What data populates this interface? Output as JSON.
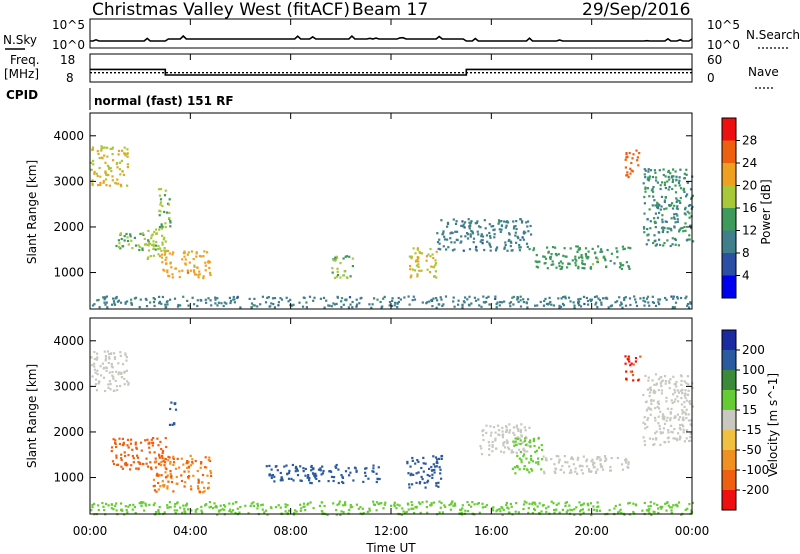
{
  "header": {
    "title": "Christmas Valley West (fitACF)",
    "beam": "Beam 17",
    "date": "29/Sep/2016"
  },
  "nsky_panel": {
    "label": "N.Sky",
    "right_label": "N.Search",
    "left_ticks": [
      "10^5",
      "10^0"
    ],
    "right_ticks": [
      "10^5",
      "10^0"
    ]
  },
  "freq_panel": {
    "label_line1": "Freq.",
    "label_line2": "[MHz]",
    "right_label": "Nave",
    "left_ticks": [
      "18",
      "8"
    ],
    "right_ticks": [
      "60",
      "0"
    ]
  },
  "cpid": {
    "label": "CPID",
    "value": "normal (fast) 151 RF"
  },
  "x_axis": {
    "label": "Time UT",
    "ticks": [
      "00:00",
      "04:00",
      "08:00",
      "12:00",
      "16:00",
      "20:00",
      "00:00"
    ]
  },
  "power_panel": {
    "ylabel": "Slant Range [km]",
    "yticks": [
      "1000",
      "2000",
      "3000",
      "4000"
    ],
    "colorbar_label": "Power [dB]",
    "colorbar_ticks": [
      "4",
      "8",
      "12",
      "16",
      "20",
      "24",
      "28"
    ],
    "colors": [
      "#0000ee",
      "#2a4fa5",
      "#3f7f8c",
      "#3d9a5a",
      "#a8c83a",
      "#f0a020",
      "#ee6010",
      "#ee1010"
    ]
  },
  "velocity_panel": {
    "ylabel": "Slant Range [km]",
    "yticks": [
      "1000",
      "2000",
      "3000",
      "4000"
    ],
    "colorbar_label": "Velocity [m s^-1]",
    "colorbar_ticks": [
      "200",
      "100",
      "50",
      "15",
      "-15",
      "-50",
      "-100",
      "-200"
    ],
    "colors": [
      "#1a2aa0",
      "#2a5aa0",
      "#3a8a3a",
      "#66cc33",
      "#c8c8c0",
      "#f0c040",
      "#f09020",
      "#ee6010",
      "#ee1010"
    ]
  },
  "chart_data": {
    "type": "heatmap",
    "title": "Christmas Valley West (fitACF)",
    "xlabel": "Time UT",
    "ylabel": "Slant Range [km]",
    "x_range_hours": [
      0,
      24
    ],
    "y_range_km": [
      200,
      4500
    ],
    "frequency": {
      "segments": [
        {
          "start_hour": 0,
          "end_hour": 3,
          "freq_mhz": 12.5
        },
        {
          "start_hour": 3,
          "end_hour": 15,
          "freq_mhz": 10.5
        },
        {
          "start_hour": 15,
          "end_hour": 24,
          "freq_mhz": 12.5
        }
      ],
      "nave": 20
    },
    "power_regions": [
      {
        "t0": 0.0,
        "t1": 1.5,
        "r0": 2900,
        "r1": 3800,
        "value_db": 20
      },
      {
        "t0": 1.0,
        "t1": 2.7,
        "r0": 1500,
        "r1": 1900,
        "value_db": 16
      },
      {
        "t0": 2.2,
        "t1": 3.0,
        "r0": 1300,
        "r1": 2000,
        "value_db": 18
      },
      {
        "t0": 2.7,
        "t1": 3.2,
        "r0": 2000,
        "r1": 2900,
        "value_db": 16
      },
      {
        "t0": 2.8,
        "t1": 4.8,
        "r0": 900,
        "r1": 1500,
        "value_db": 22
      },
      {
        "t0": 9.6,
        "t1": 10.5,
        "r0": 900,
        "r1": 1400,
        "value_db": 16
      },
      {
        "t0": 12.7,
        "t1": 13.8,
        "r0": 900,
        "r1": 1600,
        "value_db": 20
      },
      {
        "t0": 13.8,
        "t1": 17.6,
        "r0": 1500,
        "r1": 2200,
        "value_db": 10
      },
      {
        "t0": 17.6,
        "t1": 21.5,
        "r0": 1100,
        "r1": 1600,
        "value_db": 14
      },
      {
        "t0": 21.3,
        "t1": 21.9,
        "r0": 3100,
        "r1": 3700,
        "value_db": 26
      },
      {
        "t0": 22.0,
        "t1": 24.0,
        "r0": 1600,
        "r1": 3300,
        "value_db": 12
      },
      {
        "t0": 0.0,
        "t1": 24.0,
        "r0": 250,
        "r1": 500,
        "value_db": 10
      }
    ],
    "velocity_regions": [
      {
        "t0": 0.0,
        "t1": 1.5,
        "r0": 2900,
        "r1": 3800,
        "velocity": 0
      },
      {
        "t0": 0.8,
        "t1": 3.0,
        "r0": 1200,
        "r1": 1900,
        "velocity": -150
      },
      {
        "t0": 2.5,
        "t1": 4.8,
        "r0": 700,
        "r1": 1500,
        "velocity": -100
      },
      {
        "t0": 3.1,
        "t1": 3.4,
        "r0": 2100,
        "r1": 2700,
        "velocity": 150
      },
      {
        "t0": 7.0,
        "t1": 11.5,
        "r0": 900,
        "r1": 1300,
        "velocity": 120
      },
      {
        "t0": 12.6,
        "t1": 14.0,
        "r0": 800,
        "r1": 1500,
        "velocity": 120
      },
      {
        "t0": 15.5,
        "t1": 17.5,
        "r0": 1500,
        "r1": 2200,
        "velocity": 0
      },
      {
        "t0": 16.8,
        "t1": 18.0,
        "r0": 1100,
        "r1": 1900,
        "velocity": 30
      },
      {
        "t0": 18.0,
        "t1": 21.5,
        "r0": 1100,
        "r1": 1500,
        "velocity": 0
      },
      {
        "t0": 21.3,
        "t1": 21.9,
        "r0": 3100,
        "r1": 3700,
        "velocity": -200
      },
      {
        "t0": 22.0,
        "t1": 24.0,
        "r0": 1700,
        "r1": 3300,
        "velocity": 0
      },
      {
        "t0": 0.0,
        "t1": 24.0,
        "r0": 200,
        "r1": 500,
        "velocity": 30
      }
    ]
  }
}
